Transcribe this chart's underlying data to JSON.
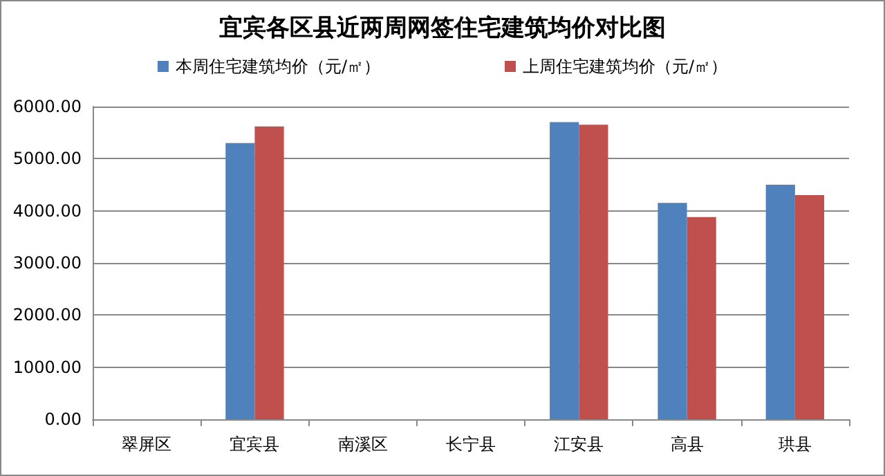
{
  "chart_data": {
    "type": "bar",
    "title": "宜宾各区县近两周网签住宅建筑均价对比图",
    "categories": [
      "翠屏区",
      "宜宾县",
      "南溪区",
      "长宁县",
      "江安县",
      "高县",
      "珙县"
    ],
    "series": [
      {
        "name": "本周住宅建筑均价（元/㎡）",
        "color": "#4f81bd",
        "values": [
          null,
          5300,
          null,
          null,
          5700,
          4150,
          4500
        ]
      },
      {
        "name": "上周住宅建筑均价（元/㎡）",
        "color": "#c0504d",
        "values": [
          null,
          5620,
          null,
          null,
          5650,
          3880,
          4300
        ]
      }
    ],
    "ylim": [
      0,
      6000
    ],
    "yticks": [
      {
        "value": 0,
        "label": "0.00"
      },
      {
        "value": 1000,
        "label": "1000.00"
      },
      {
        "value": 2000,
        "label": "2000.00"
      },
      {
        "value": 3000,
        "label": "3000.00"
      },
      {
        "value": 4000,
        "label": "4000.00"
      },
      {
        "value": 5000,
        "label": "5000.00"
      },
      {
        "value": 6000,
        "label": "6000.00"
      }
    ],
    "grid": "y",
    "legend": "top"
  }
}
